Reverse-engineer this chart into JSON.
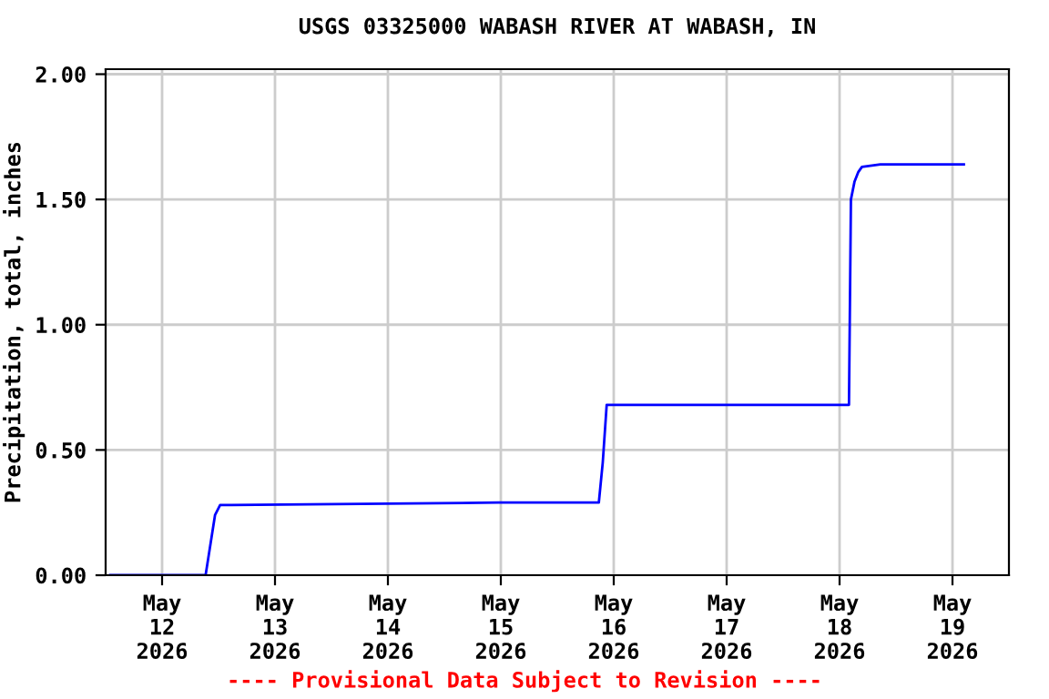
{
  "chart_data": {
    "type": "line",
    "title": "USGS 03325000 WABASH RIVER AT WABASH, IN",
    "ylabel": "Precipitation, total, inches",
    "x": [
      "2026-05-11T13:00",
      "2026-05-12T09:15",
      "2026-05-12T10:30",
      "2026-05-12T11:15",
      "2026-05-12T12:20",
      "2026-05-14T23:30",
      "2026-05-15T20:50",
      "2026-05-15T21:40",
      "2026-05-15T22:30",
      "2026-05-18T02:00",
      "2026-05-18T02:25",
      "2026-05-18T03:10",
      "2026-05-18T04:00",
      "2026-05-18T04:45",
      "2026-05-18T08:40",
      "2026-05-19T02:25"
    ],
    "series": [
      {
        "color": "#0000ff",
        "values": [
          0.0,
          0.0,
          0.15,
          0.24,
          0.28,
          0.29,
          0.29,
          0.45,
          0.68,
          0.68,
          1.5,
          1.57,
          1.61,
          1.63,
          1.64,
          1.64
        ]
      }
    ],
    "xlim": [
      "2026-05-11T12:00",
      "2026-05-19T12:00"
    ],
    "xticks": [
      {
        "value": "2026-05-12",
        "label": "May\n12\n2026"
      },
      {
        "value": "2026-05-13",
        "label": "May\n13\n2026"
      },
      {
        "value": "2026-05-14",
        "label": "May\n14\n2026"
      },
      {
        "value": "2026-05-15",
        "label": "May\n15\n2026"
      },
      {
        "value": "2026-05-16",
        "label": "May\n16\n2026"
      },
      {
        "value": "2026-05-17",
        "label": "May\n17\n2026"
      },
      {
        "value": "2026-05-18",
        "label": "May\n18\n2026"
      },
      {
        "value": "2026-05-19",
        "label": "May\n19\n2026"
      }
    ],
    "ylim": [
      0,
      2.02
    ],
    "yticks": [
      {
        "value": 0,
        "label": "0.00"
      },
      {
        "value": 0.5,
        "label": "0.50"
      },
      {
        "value": 1,
        "label": "1.00"
      },
      {
        "value": 1.5,
        "label": "1.50"
      },
      {
        "value": 2,
        "label": "2.00"
      }
    ],
    "grid": true,
    "legend": false,
    "marker": "none",
    "line_style": "solid",
    "annotations": [
      "---- Provisional Data Subject to Revision ----"
    ]
  }
}
